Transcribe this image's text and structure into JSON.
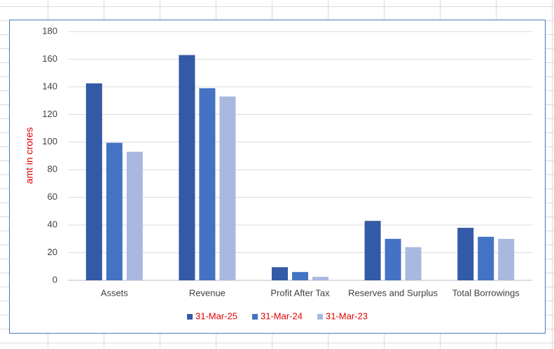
{
  "chart_data": {
    "type": "bar",
    "y_label": "amt in crores",
    "categories": [
      "Assets",
      "Revenue",
      "Profit After Tax",
      "Reserves and Surplus",
      "Total Borrowings"
    ],
    "series": [
      {
        "name": "31-Mar-25",
        "color": "#335aa6",
        "values": [
          142.5,
          163,
          9.5,
          43,
          38
        ]
      },
      {
        "name": "31-Mar-24",
        "color": "#4472c4",
        "values": [
          99.5,
          139,
          6,
          30,
          31.5
        ]
      },
      {
        "name": "31-Mar-23",
        "color": "#a9b8de",
        "values": [
          93,
          133,
          2.5,
          24,
          30
        ]
      }
    ],
    "ylim": [
      0,
      180
    ],
    "yticks": [
      0,
      20,
      40,
      60,
      80,
      100,
      120,
      140,
      160,
      180
    ],
    "grid": true,
    "legend_position": "bottom",
    "label_color": "#e00000"
  }
}
